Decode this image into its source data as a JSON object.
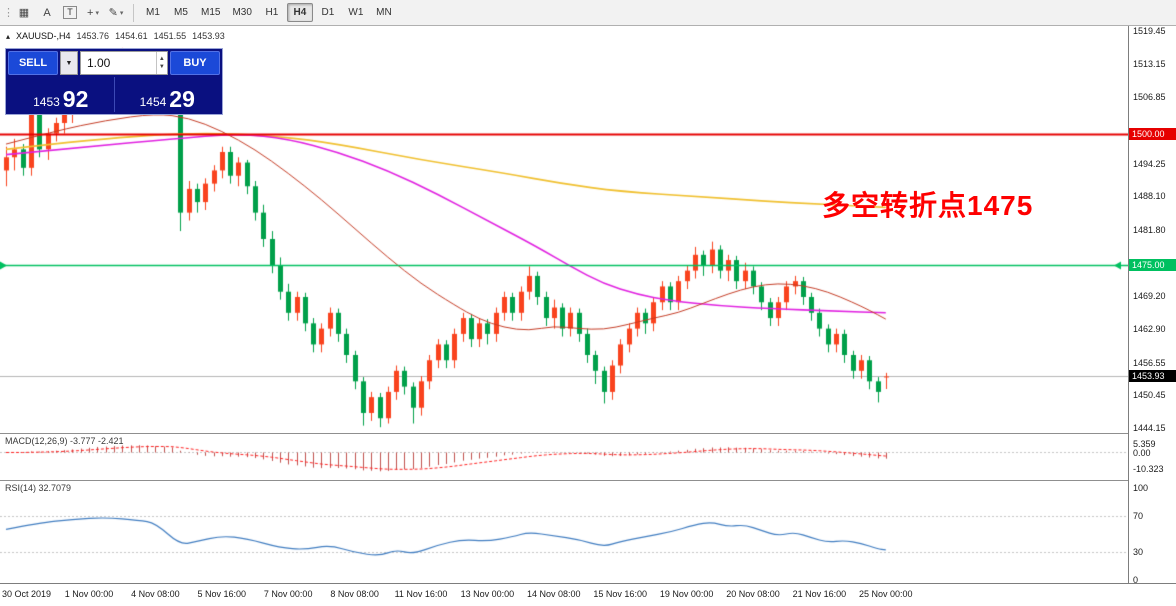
{
  "toolbar": {
    "drag_handle": "⋮",
    "tools": [
      {
        "name": "chart-window-icon",
        "glyph": "▦"
      },
      {
        "name": "cursor-tool-icon",
        "glyph": "A"
      },
      {
        "name": "text-tool-icon",
        "glyph": "T",
        "boxed": true
      },
      {
        "name": "crosshair-tool-icon",
        "glyph": "+",
        "dropdown": true
      },
      {
        "name": "draw-tool-icon",
        "glyph": "✎",
        "dropdown": true
      }
    ],
    "timeframes": [
      "M1",
      "M5",
      "M15",
      "M30",
      "H1",
      "H4",
      "D1",
      "W1",
      "MN"
    ],
    "active_timeframe": "H4"
  },
  "chart_header": {
    "icon": "▴",
    "symbol": "XAUUSD-,H4",
    "open": "1453.76",
    "high": "1454.61",
    "low": "1451.55",
    "close": "1453.93"
  },
  "trade_panel": {
    "sell_label": "SELL",
    "buy_label": "BUY",
    "volume": "1.00",
    "dropdown_icon": "▼",
    "spin_up": "▲",
    "spin_down": "▼",
    "bid_small": "1453",
    "bid_big": "92",
    "ask_small": "1454",
    "ask_big": "29"
  },
  "annotation": {
    "text": "多空转折点1475",
    "color": "#fe0000"
  },
  "price_axis": {
    "labels": [
      {
        "text": "1519.45",
        "price": 1519.45
      },
      {
        "text": "1513.15",
        "price": 1513.15
      },
      {
        "text": "1506.85",
        "price": 1506.85
      },
      {
        "text": "1494.25",
        "price": 1494.25
      },
      {
        "text": "1488.10",
        "price": 1488.1
      },
      {
        "text": "1481.80",
        "price": 1481.8
      },
      {
        "text": "1469.20",
        "price": 1469.2
      },
      {
        "text": "1462.90",
        "price": 1462.9
      },
      {
        "text": "1456.55",
        "price": 1456.55
      },
      {
        "text": "1450.45",
        "price": 1450.45
      },
      {
        "text": "1444.15",
        "price": 1444.15
      }
    ],
    "special": [
      {
        "name": "resistance-level-label",
        "text": "1500.00",
        "price": 1500.0,
        "bg": "#e60000",
        "fg": "#ffffff"
      },
      {
        "name": "support-level-label",
        "text": "1475.00",
        "price": 1475.0,
        "bg": "#00c060",
        "fg": "#ffffff"
      },
      {
        "name": "current-price-label",
        "text": "1453.93",
        "price": 1453.93,
        "bg": "#000000",
        "fg": "#ffffff"
      }
    ],
    "current": {
      "price": 1453.93
    }
  },
  "time_axis": {
    "labels": [
      {
        "i": 2,
        "text": "30 Oct 2019"
      },
      {
        "i": 10,
        "text": "1 Nov 00:00"
      },
      {
        "i": 18,
        "text": "4 Nov 08:00"
      },
      {
        "i": 26,
        "text": "5 Nov 16:00"
      },
      {
        "i": 34,
        "text": "7 Nov 00:00"
      },
      {
        "i": 42,
        "text": "8 Nov 08:00"
      },
      {
        "i": 50,
        "text": "11 Nov 16:00"
      },
      {
        "i": 58,
        "text": "13 Nov 00:00"
      },
      {
        "i": 66,
        "text": "14 Nov 08:00"
      },
      {
        "i": 74,
        "text": "15 Nov 16:00"
      },
      {
        "i": 82,
        "text": "19 Nov 00:00"
      },
      {
        "i": 90,
        "text": "20 Nov 08:00"
      },
      {
        "i": 98,
        "text": "21 Nov 16:00"
      },
      {
        "i": 106,
        "text": "25 Nov 00:00"
      }
    ]
  },
  "indicators": {
    "macd": {
      "label": "MACD(12,26,9) -3.777 -2.421",
      "params": [
        12,
        26,
        9
      ],
      "values": {
        "macd": -3.777,
        "signal": -2.421
      },
      "axis": [
        {
          "text": "5.359",
          "v": 5.359
        },
        {
          "text": "0.00",
          "v": 0
        },
        {
          "text": "-10.323",
          "v": -10.323
        }
      ]
    },
    "rsi": {
      "label": "RSI(14) 32.7079",
      "period": 14,
      "value": 32.7079,
      "axis": [
        {
          "text": "100",
          "v": 100
        },
        {
          "text": "70",
          "v": 70
        },
        {
          "text": "30",
          "v": 30
        },
        {
          "text": "0",
          "v": 0
        }
      ]
    }
  },
  "colors": {
    "up_candle": "#f9431e",
    "down_candle": "#00a04a",
    "ma_fast": "#c33a23",
    "ma_mid": "#e020e0",
    "ma_slow": "#f0c030",
    "macd_hist": "#c0504d",
    "macd_signal": "#ff2020",
    "rsi_line": "#3f7cc0",
    "current_price_line": "#b4b4b4",
    "grid_dotted": "#c4c4c4"
  },
  "chart_data": {
    "type": "candlestick",
    "symbol": "XAUUSD-",
    "timeframe": "H4",
    "price_range": [
      1444.15,
      1519.45
    ],
    "levels": [
      {
        "price": 1500.0,
        "color": "#e60000",
        "width": 2,
        "arrows": false
      },
      {
        "price": 1475.0,
        "color": "#00c060",
        "width": 1.5,
        "arrows": true
      }
    ],
    "candles": [
      [
        1493,
        1497.5,
        1490,
        1495.5
      ],
      [
        1495.5,
        1499,
        1493,
        1497
      ],
      [
        1497,
        1498,
        1492,
        1493.5
      ],
      [
        1493.5,
        1506.5,
        1492,
        1504.5
      ],
      [
        1504.5,
        1505.5,
        1495.5,
        1497
      ],
      [
        1497,
        1501,
        1495,
        1500
      ],
      [
        1500,
        1503,
        1498.5,
        1502
      ],
      [
        1502,
        1505,
        1500,
        1504
      ],
      [
        1504,
        1507,
        1502,
        1506
      ],
      [
        1506,
        1509.5,
        1504.5,
        1508.5
      ],
      [
        1508.5,
        1511.5,
        1506,
        1510.5
      ],
      [
        1510.5,
        1513,
        1508,
        1512
      ],
      [
        1512,
        1513.5,
        1509,
        1510.5
      ],
      [
        1510.5,
        1514,
        1509,
        1513
      ],
      [
        1513,
        1516.2,
        1511,
        1515
      ],
      [
        1515,
        1515.8,
        1511.5,
        1512.5
      ],
      [
        1512.5,
        1515,
        1510.5,
        1514
      ],
      [
        1514,
        1514.8,
        1510,
        1511.5
      ],
      [
        1509.5,
        1511,
        1506.5,
        1508
      ],
      [
        1508,
        1511,
        1506,
        1510
      ],
      [
        1510,
        1510.8,
        1505,
        1506.5
      ],
      [
        1506.5,
        1507.5,
        1481.5,
        1485
      ],
      [
        1485,
        1491,
        1483.5,
        1489.5
      ],
      [
        1489.5,
        1490.5,
        1485,
        1487
      ],
      [
        1487,
        1491.5,
        1485.5,
        1490.5
      ],
      [
        1490.5,
        1494,
        1489,
        1493
      ],
      [
        1493,
        1497.5,
        1491.5,
        1496.5
      ],
      [
        1496.5,
        1497.5,
        1490.5,
        1492
      ],
      [
        1492,
        1495.5,
        1490,
        1494.5
      ],
      [
        1494.5,
        1495,
        1488.5,
        1490
      ],
      [
        1490,
        1491,
        1483.5,
        1485
      ],
      [
        1485,
        1486.5,
        1478.5,
        1480
      ],
      [
        1480,
        1481.5,
        1473.5,
        1475
      ],
      [
        1475,
        1476.5,
        1468.5,
        1470
      ],
      [
        1470,
        1471.5,
        1464.5,
        1466
      ],
      [
        1466,
        1470,
        1464.5,
        1469
      ],
      [
        1469,
        1469.8,
        1462.5,
        1464
      ],
      [
        1464,
        1465,
        1458.5,
        1460
      ],
      [
        1460,
        1464,
        1458.5,
        1463
      ],
      [
        1463,
        1467,
        1461.5,
        1466
      ],
      [
        1466,
        1466.8,
        1460.5,
        1462
      ],
      [
        1462,
        1463,
        1456.5,
        1458
      ],
      [
        1458,
        1458.8,
        1451.5,
        1453
      ],
      [
        1453,
        1453.8,
        1444.6,
        1447
      ],
      [
        1447,
        1451,
        1445.5,
        1450
      ],
      [
        1450,
        1450.8,
        1444.3,
        1446
      ],
      [
        1446,
        1452,
        1445,
        1451
      ],
      [
        1451,
        1456,
        1449.5,
        1455
      ],
      [
        1455,
        1455.8,
        1450.5,
        1452
      ],
      [
        1452,
        1452.8,
        1445,
        1448
      ],
      [
        1448,
        1454,
        1446.5,
        1453
      ],
      [
        1453,
        1458,
        1451.5,
        1457
      ],
      [
        1457,
        1461,
        1455.5,
        1460
      ],
      [
        1460,
        1460.8,
        1455.5,
        1457
      ],
      [
        1457,
        1463,
        1455.5,
        1462
      ],
      [
        1462,
        1466,
        1460.5,
        1465
      ],
      [
        1465,
        1465.8,
        1459.5,
        1461
      ],
      [
        1461,
        1465,
        1459.5,
        1464
      ],
      [
        1464,
        1464.8,
        1460,
        1462
      ],
      [
        1462,
        1467,
        1460.5,
        1466
      ],
      [
        1466,
        1470,
        1464.5,
        1469
      ],
      [
        1469,
        1469.8,
        1464.5,
        1466
      ],
      [
        1466,
        1471,
        1464.5,
        1470
      ],
      [
        1470,
        1474.8,
        1468.5,
        1473
      ],
      [
        1473,
        1473.8,
        1467.5,
        1469
      ],
      [
        1469,
        1470,
        1463.5,
        1465
      ],
      [
        1465,
        1468.5,
        1463,
        1467
      ],
      [
        1467,
        1467.8,
        1461.5,
        1463
      ],
      [
        1463,
        1467,
        1461.5,
        1466
      ],
      [
        1466,
        1466.8,
        1460.5,
        1462
      ],
      [
        1462,
        1463,
        1456.5,
        1458
      ],
      [
        1458,
        1458.8,
        1452.5,
        1455
      ],
      [
        1455,
        1455.8,
        1448.8,
        1451
      ],
      [
        1451,
        1457,
        1449.5,
        1456
      ],
      [
        1456,
        1461,
        1454.5,
        1460
      ],
      [
        1460,
        1464,
        1458.5,
        1463
      ],
      [
        1463,
        1467,
        1461.5,
        1466
      ],
      [
        1466,
        1466.8,
        1462,
        1464
      ],
      [
        1464,
        1469,
        1462.5,
        1468
      ],
      [
        1468,
        1472,
        1466.5,
        1471
      ],
      [
        1471,
        1471.8,
        1466.5,
        1468
      ],
      [
        1468,
        1473,
        1466.5,
        1472
      ],
      [
        1472,
        1475,
        1470.5,
        1474
      ],
      [
        1474,
        1478.5,
        1472.5,
        1477
      ],
      [
        1477,
        1477.8,
        1473,
        1475
      ],
      [
        1475,
        1479.5,
        1473.5,
        1478
      ],
      [
        1478,
        1478.8,
        1472.5,
        1474
      ],
      [
        1474,
        1477,
        1472,
        1476
      ],
      [
        1476,
        1476.8,
        1470.5,
        1472
      ],
      [
        1472,
        1475.5,
        1470.5,
        1474
      ],
      [
        1474,
        1474.8,
        1469.5,
        1471
      ],
      [
        1471,
        1471.8,
        1466.5,
        1468
      ],
      [
        1468,
        1468.8,
        1463.5,
        1465
      ],
      [
        1465,
        1469,
        1463.5,
        1468
      ],
      [
        1468,
        1472,
        1466.5,
        1471
      ],
      [
        1471,
        1473,
        1469.5,
        1472
      ],
      [
        1472,
        1472.8,
        1467.5,
        1469
      ],
      [
        1469,
        1469.8,
        1464.5,
        1466
      ],
      [
        1466,
        1466.8,
        1461.5,
        1463
      ],
      [
        1463,
        1463.8,
        1458.5,
        1460
      ],
      [
        1460,
        1463,
        1458.5,
        1462
      ],
      [
        1462,
        1462.8,
        1456.5,
        1458
      ],
      [
        1458,
        1458.8,
        1453.5,
        1455
      ],
      [
        1455,
        1458,
        1453.5,
        1457
      ],
      [
        1457,
        1457.8,
        1451.5,
        1453
      ],
      [
        1453,
        1453.8,
        1449,
        1451
      ],
      [
        1453.76,
        1454.61,
        1451.55,
        1453.93
      ]
    ],
    "moving_averages": [
      {
        "name": "ma-slow",
        "color": "#f0c030",
        "width": 1.6,
        "points": [
          [
            0,
            1497
          ],
          [
            11,
            1499
          ],
          [
            23,
            1500.2
          ],
          [
            33,
            1499.5
          ],
          [
            40,
            1498
          ],
          [
            50,
            1495
          ],
          [
            60,
            1492.5
          ],
          [
            67,
            1490.5
          ],
          [
            74,
            1489
          ],
          [
            84,
            1488
          ],
          [
            91,
            1487.2
          ],
          [
            98,
            1486.6
          ],
          [
            106,
            1486
          ]
        ]
      },
      {
        "name": "ma-mid",
        "color": "#e020e0",
        "width": 1.6,
        "points": [
          [
            0,
            1496
          ],
          [
            10,
            1497.5
          ],
          [
            20,
            1499
          ],
          [
            28,
            1500
          ],
          [
            34,
            1499
          ],
          [
            40,
            1496.5
          ],
          [
            46,
            1493
          ],
          [
            52,
            1488.5
          ],
          [
            58,
            1483.5
          ],
          [
            64,
            1478.5
          ],
          [
            68,
            1474.8
          ],
          [
            72,
            1471.5
          ],
          [
            76,
            1469.5
          ],
          [
            80,
            1468.3
          ],
          [
            86,
            1467.3
          ],
          [
            92,
            1466.8
          ],
          [
            100,
            1466.3
          ],
          [
            106,
            1466
          ]
        ]
      },
      {
        "name": "ma-fast",
        "color": "#c33a23",
        "width": 1,
        "points": [
          [
            0,
            1498
          ],
          [
            6,
            1500.5
          ],
          [
            12,
            1502.5
          ],
          [
            18,
            1503.8
          ],
          [
            22,
            1503
          ],
          [
            26,
            1500.5
          ],
          [
            30,
            1497
          ],
          [
            34,
            1492.5
          ],
          [
            38,
            1487.5
          ],
          [
            42,
            1482
          ],
          [
            46,
            1476.5
          ],
          [
            50,
            1471.5
          ],
          [
            54,
            1467.5
          ],
          [
            57,
            1464.8
          ],
          [
            60,
            1463.2
          ],
          [
            63,
            1462.6
          ],
          [
            66,
            1463.5
          ],
          [
            69,
            1463
          ],
          [
            72,
            1462.8
          ],
          [
            75,
            1463.8
          ],
          [
            78,
            1465
          ],
          [
            81,
            1466
          ],
          [
            84,
            1467.8
          ],
          [
            87,
            1469.6
          ],
          [
            90,
            1471
          ],
          [
            93,
            1471.6
          ],
          [
            96,
            1471.2
          ],
          [
            99,
            1470
          ],
          [
            102,
            1468
          ],
          [
            104,
            1466.5
          ],
          [
            106,
            1464.8
          ]
        ]
      }
    ],
    "rsi": [
      [
        0,
        55
      ],
      [
        4,
        62
      ],
      [
        8,
        66
      ],
      [
        12,
        68
      ],
      [
        16,
        65
      ],
      [
        18,
        62
      ],
      [
        21,
        38
      ],
      [
        23,
        42
      ],
      [
        26,
        48
      ],
      [
        29,
        45
      ],
      [
        33,
        35
      ],
      [
        36,
        33
      ],
      [
        39,
        38
      ],
      [
        42,
        30
      ],
      [
        45,
        26
      ],
      [
        47,
        33
      ],
      [
        49,
        28
      ],
      [
        52,
        38
      ],
      [
        55,
        44
      ],
      [
        58,
        42
      ],
      [
        61,
        47
      ],
      [
        63,
        52
      ],
      [
        66,
        48
      ],
      [
        69,
        44
      ],
      [
        72,
        36
      ],
      [
        74,
        42
      ],
      [
        77,
        47
      ],
      [
        80,
        52
      ],
      [
        83,
        60
      ],
      [
        85,
        63
      ],
      [
        87,
        58
      ],
      [
        89,
        60
      ],
      [
        91,
        54
      ],
      [
        93,
        48
      ],
      [
        95,
        52
      ],
      [
        97,
        46
      ],
      [
        99,
        41
      ],
      [
        101,
        43
      ],
      [
        103,
        40
      ],
      [
        105,
        34
      ],
      [
        106,
        32.7
      ]
    ]
  }
}
